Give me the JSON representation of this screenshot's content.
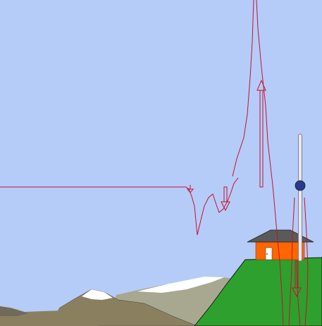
{
  "colors": {
    "sky": "#b5ccf8",
    "field_line": "#c8102e",
    "hill": "#2ea02e",
    "hill_outline": "#1a1a1a",
    "mountain_far": "#a8a890",
    "mountain_near": "#8a8060",
    "mountain_dark": "#706a58",
    "snow": "#ffffff",
    "house_wall": "#ff6600",
    "house_roof": "#5a5a5a",
    "door": "#ffffff",
    "rod": "#e8e8f0",
    "rod_outline": "#808090",
    "ball": "#2a3a8a"
  },
  "icons": {
    "house": "house-icon",
    "lightning_rod": "lightning-rod-icon",
    "charge_ball": "charge-ball-icon"
  }
}
